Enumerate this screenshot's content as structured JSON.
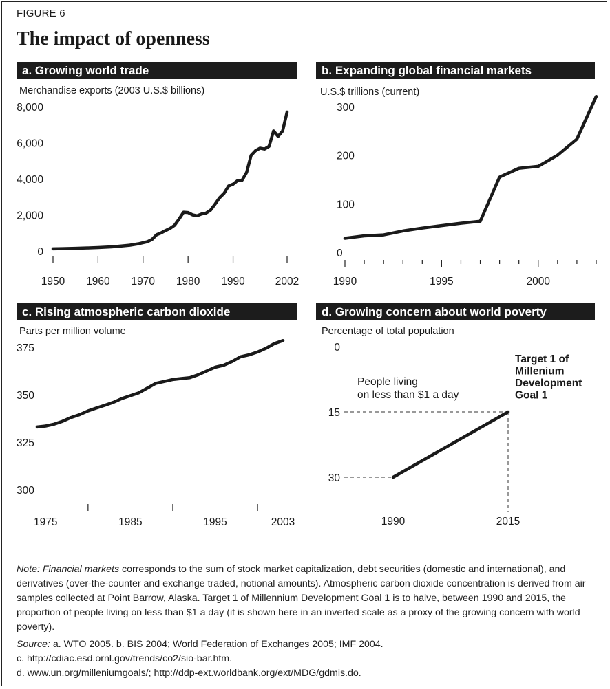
{
  "figure": {
    "label": "FIGURE 6",
    "title": "The impact of openness"
  },
  "chart_data": [
    {
      "type": "line",
      "title": "a. Growing world trade",
      "ylabel": "Merchandise exports (2003 U.S.$ billions)",
      "xlabel": "",
      "ylim": [
        0,
        8000
      ],
      "xlim": [
        1950,
        2002
      ],
      "yticks": [
        0,
        2000,
        4000,
        6000,
        8000
      ],
      "yticklabels": [
        "0",
        "2,000",
        "4,000",
        "6,000",
        "8,000"
      ],
      "xticks": [
        1950,
        1960,
        1970,
        1980,
        1990,
        2002
      ],
      "xticklabels": [
        "1950",
        "1960",
        "1970",
        "1980",
        "1990",
        "2002"
      ],
      "grid": false,
      "series": [
        {
          "x": [
            1950,
            1952,
            1955,
            1958,
            1960,
            1963,
            1965,
            1967,
            1969,
            1970,
            1971,
            1972,
            1973,
            1974,
            1975,
            1976,
            1977,
            1978,
            1979,
            1980,
            1981,
            1982,
            1983,
            1984,
            1985,
            1986,
            1987,
            1988,
            1989,
            1990,
            1991,
            1992,
            1993,
            1994,
            1995,
            1996,
            1997,
            1998,
            1999,
            2000,
            2001,
            2002
          ],
          "y": [
            120,
            130,
            150,
            170,
            190,
            230,
            270,
            320,
            400,
            460,
            520,
            640,
            900,
            1000,
            1130,
            1250,
            1420,
            1770,
            2150,
            2130,
            2000,
            1950,
            2050,
            2100,
            2260,
            2600,
            2950,
            3200,
            3600,
            3700,
            3900,
            3920,
            4350,
            5300,
            5560,
            5700,
            5650,
            5800,
            6650,
            6350,
            6650,
            7700
          ]
        }
      ]
    },
    {
      "type": "line",
      "title": "b. Expanding global financial markets",
      "ylabel": "U.S.$ trillions (current)",
      "xlabel": "",
      "ylim": [
        0,
        300
      ],
      "xlim": [
        1990,
        2003
      ],
      "yticks": [
        0,
        100,
        200,
        300
      ],
      "yticklabels": [
        "0",
        "100",
        "200",
        "300"
      ],
      "xticks": [
        1990,
        1995,
        2000
      ],
      "xticklabels": [
        "1990",
        "1995",
        "2000"
      ],
      "minor_xticks": [
        1991,
        1992,
        1993,
        1994,
        1996,
        1997,
        1998,
        1999,
        2001,
        2002,
        2003
      ],
      "grid": false,
      "series": [
        {
          "x": [
            1990,
            1991,
            1992,
            1993,
            1994,
            1995,
            1996,
            1997,
            1998,
            1999,
            2000,
            2001,
            2002,
            2003
          ],
          "y": [
            29,
            34,
            36,
            44,
            50,
            55,
            60,
            64,
            155,
            173,
            177,
            200,
            233,
            321
          ]
        }
      ]
    },
    {
      "type": "line",
      "title": "c. Rising  atmospheric carbon dioxide",
      "ylabel": "Parts per million volume",
      "xlabel": "",
      "ylim": [
        300,
        375
      ],
      "xlim": [
        1974,
        2003
      ],
      "yticks": [
        300,
        325,
        350,
        375
      ],
      "yticklabels": [
        "300",
        "325",
        "350",
        "375"
      ],
      "xticks": [
        1975,
        1985,
        1995,
        2003
      ],
      "xticklabels": [
        "1975",
        "1985",
        "1995",
        "2003"
      ],
      "minor_xticks": [
        1980,
        1990,
        2000
      ],
      "grid": false,
      "series": [
        {
          "x": [
            1974,
            1975,
            1976,
            1977,
            1978,
            1979,
            1980,
            1981,
            1982,
            1983,
            1984,
            1985,
            1986,
            1987,
            1988,
            1989,
            1990,
            1991,
            1992,
            1993,
            1994,
            1995,
            1996,
            1997,
            1998,
            1999,
            2000,
            2001,
            2002,
            2003
          ],
          "y": [
            333,
            333.5,
            334.5,
            336,
            338,
            339.5,
            341.5,
            343,
            344.5,
            346,
            348,
            349.5,
            351,
            353.5,
            356,
            357,
            358,
            358.5,
            359,
            360.5,
            362.5,
            364.5,
            365.5,
            367.5,
            370,
            371,
            372.5,
            374.5,
            377,
            378.5
          ]
        }
      ]
    },
    {
      "type": "line",
      "title": "d. Growing concern about world poverty",
      "ylabel": "Percentage of total population",
      "xlabel": "",
      "ylim": [
        30,
        0
      ],
      "inverted_y": true,
      "yticks": [
        0,
        15,
        30
      ],
      "yticklabels": [
        "0",
        "15",
        "30"
      ],
      "xticks": [
        1990,
        2015
      ],
      "xticklabels": [
        "1990",
        "2015"
      ],
      "grid": false,
      "series": [
        {
          "x": [
            1990,
            2015
          ],
          "y": [
            30,
            15
          ]
        }
      ],
      "annotations": {
        "series_label": [
          "People living",
          "on less than $1 a day"
        ],
        "target_label": [
          "Target 1 of",
          "Millenium",
          "Development",
          "Goal 1"
        ]
      }
    }
  ],
  "notes": {
    "note_lead": "Note: ",
    "note_em": "Financial markets",
    "note_text": " corresponds to the sum of stock market capitalization, debt securities (domestic and international), and derivatives (over-the-counter and exchange traded, notional amounts). Atmospheric carbon dioxide concentration is derived from air samples collected at Point Barrow, Alaska. Target 1 of Millennium Development Goal 1 is to halve, between 1990 and 2015, the proportion of people living on less than $1 a day (it is shown here in an inverted scale as a proxy of the growing concern with world poverty).",
    "source_lead": "Source: ",
    "source_text": "a. WTO 2005. b. BIS 2004; World Federation of Exchanges 2005; IMF 2004.",
    "source_c": "c. http://cdiac.esd.ornl.gov/trends/co2/sio-bar.htm.",
    "source_d": "d. www.un.org/milleniumgoals/; http://ddp-ext.worldbank.org/ext/MDG/gdmis.do."
  }
}
